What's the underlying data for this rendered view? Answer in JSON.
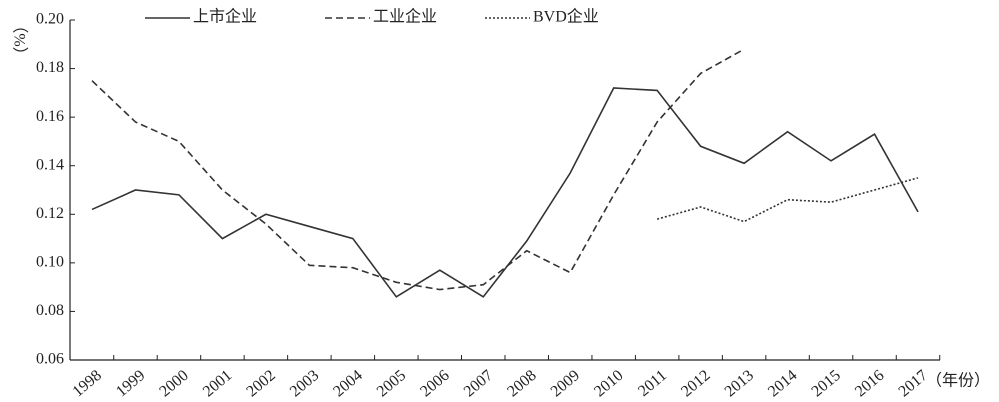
{
  "chart_data": {
    "type": "line",
    "categories": [
      "1998",
      "1999",
      "2000",
      "2001",
      "2002",
      "2003",
      "2004",
      "2005",
      "2006",
      "2007",
      "2008",
      "2009",
      "2010",
      "2011",
      "2012",
      "2013",
      "2014",
      "2015",
      "2016",
      "2017"
    ],
    "series": [
      {
        "name": "上市企业",
        "color": "#333333",
        "dash": "solid",
        "values": [
          0.122,
          0.13,
          0.128,
          0.11,
          0.12,
          0.115,
          0.11,
          0.086,
          0.097,
          0.086,
          0.109,
          0.137,
          0.172,
          0.171,
          0.148,
          0.141,
          0.154,
          0.142,
          0.153,
          0.121
        ]
      },
      {
        "name": "工业企业",
        "color": "#333333",
        "dash": "dashed",
        "values": [
          0.175,
          0.158,
          0.15,
          0.13,
          0.116,
          0.099,
          0.098,
          0.092,
          0.089,
          0.091,
          0.105,
          0.096,
          0.128,
          0.158,
          0.178,
          0.188,
          null,
          null,
          null,
          null
        ]
      },
      {
        "name": "BVD企业",
        "color": "#333333",
        "dash": "dotted",
        "values": [
          null,
          null,
          null,
          null,
          null,
          null,
          null,
          null,
          null,
          null,
          null,
          null,
          null,
          0.118,
          0.123,
          0.117,
          0.126,
          0.125,
          0.13,
          0.135
        ]
      }
    ],
    "ylabel": "（%）",
    "xlabel": "（年份）",
    "ylim": [
      0.06,
      0.2
    ],
    "yticks": [
      0.06,
      0.08,
      {
        "value": 0.1,
        "label": "0.10"
      },
      0.12,
      0.14,
      0.16,
      0.18,
      {
        "value": 0.2,
        "label": "0.20"
      }
    ],
    "legend": "top"
  }
}
